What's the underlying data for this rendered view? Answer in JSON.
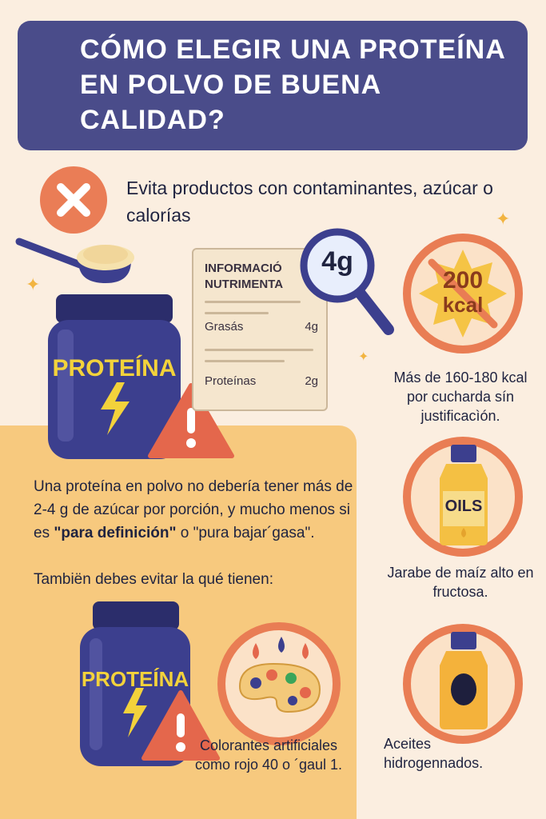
{
  "header": {
    "title": "CÓMO ELEGIR UNA PROTEÍNA EN POLVO DE BUENA CALIDAD?"
  },
  "avoid": {
    "text": "Evita productos con contaminantes, azúcar o calorías"
  },
  "jar_top": {
    "label": "PROTEÍNA"
  },
  "jar_bottom": {
    "label": "PROTEÍNA"
  },
  "nutrition": {
    "title": "INFORMACIÓ\nNUTRIMENTA",
    "magnifier_value": "4g",
    "rows": [
      {
        "name": "Grasás",
        "value": "4g"
      },
      {
        "name": "Proteínas",
        "value": "2g"
      }
    ]
  },
  "calories": {
    "badge_value": "200",
    "badge_unit": "kcal",
    "caption": "Más de 160-180 kcal por cucharda sín justificacìón."
  },
  "body": {
    "line1": "Una proteína en polvo no debería tener más de 2-4 g de azúcar por porción, y mucho menos si es",
    "quote1": "\"para definición\"",
    "connector": " o ",
    "quote2": "\"pura bajar´gasa\".",
    "line2": "Tambiën debes evitar la qué tienen:"
  },
  "syrup": {
    "label": "OILS",
    "caption": "Jarabe de maíz alto en fructosa."
  },
  "oils": {
    "caption": "Aceites hidrogennados."
  },
  "colorants": {
    "caption": "Colorantes artificiales como rojo 40 o ´gaul 1."
  },
  "colors": {
    "navy": "#4a4c8a",
    "orange": "#e97d54",
    "panel": "#f7c97e",
    "background": "#fbeee0",
    "jar": "#3c3f8e"
  }
}
